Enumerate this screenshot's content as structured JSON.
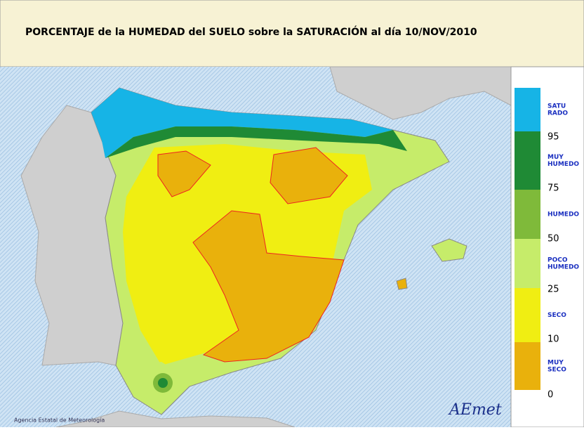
{
  "header": {
    "title": "PORCENTAJE de la HUMEDAD del SUELO sobre la SATURACIÓN al día 10/NOV/2010"
  },
  "legend": {
    "classes": [
      {
        "lines": [
          "SATU",
          "RADO"
        ],
        "color": "#16b4e6"
      },
      {
        "lines": [
          "MUY",
          "HUMEDO"
        ],
        "color": "#1f8a35"
      },
      {
        "lines": [
          "HUMEDO"
        ],
        "color": "#7fba3a"
      },
      {
        "lines": [
          "POCO",
          "HUMEDO"
        ],
        "color": "#c6ec6a"
      },
      {
        "lines": [
          "SECO"
        ],
        "color": "#f0ee12"
      },
      {
        "lines": [
          "MUY",
          "SECO"
        ],
        "color": "#e9b10c"
      }
    ],
    "thresholds": [
      95,
      75,
      50,
      25,
      10,
      0
    ]
  },
  "footer": {
    "agency": "Agencia Estatal de Meteorología",
    "logo": "AEmet"
  }
}
